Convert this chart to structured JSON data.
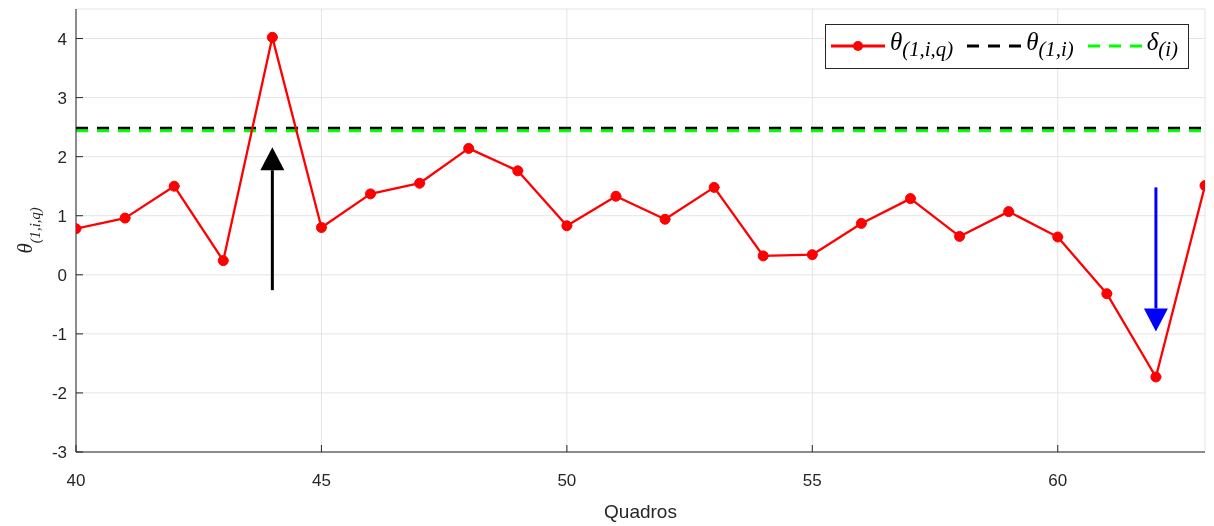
{
  "chart_data": {
    "type": "line",
    "xlabel": "Quadros",
    "ylabel": "θ$_{(1,i,q)}$",
    "x": [
      40,
      41,
      42,
      43,
      44,
      45,
      46,
      47,
      48,
      49,
      50,
      51,
      52,
      53,
      54,
      55,
      56,
      57,
      58,
      59,
      60,
      61,
      62,
      63
    ],
    "series": [
      {
        "name": "θ$_{(1,i,q)}$",
        "color": "#ff0000",
        "values": [
          0.78,
          0.96,
          1.5,
          0.24,
          4.02,
          0.8,
          1.37,
          1.55,
          2.14,
          1.76,
          0.83,
          1.33,
          0.94,
          1.48,
          0.32,
          0.34,
          0.87,
          1.29,
          0.65,
          1.07,
          0.64,
          -0.32,
          -1.73,
          1.51
        ]
      }
    ],
    "xlim": [
      40,
      63
    ],
    "ylim": [
      -3,
      4.5
    ],
    "xticks": [
      40,
      45,
      50,
      55,
      60
    ],
    "yticks": [
      -3,
      -2,
      -1,
      0,
      1,
      2,
      3,
      4
    ],
    "grid": true,
    "legend": "top right",
    "marker": "circle",
    "line_style": "solid",
    "ref_lines": [
      {
        "axis": "y",
        "value": 2.48,
        "label": "θ$_{(1,i)}$",
        "color": "#000000",
        "line_style": "dashed"
      },
      {
        "axis": "y",
        "value": 2.44,
        "label": "δ$_{(i)}$",
        "color": "#00ff00",
        "line_style": "dashed"
      }
    ]
  }
}
